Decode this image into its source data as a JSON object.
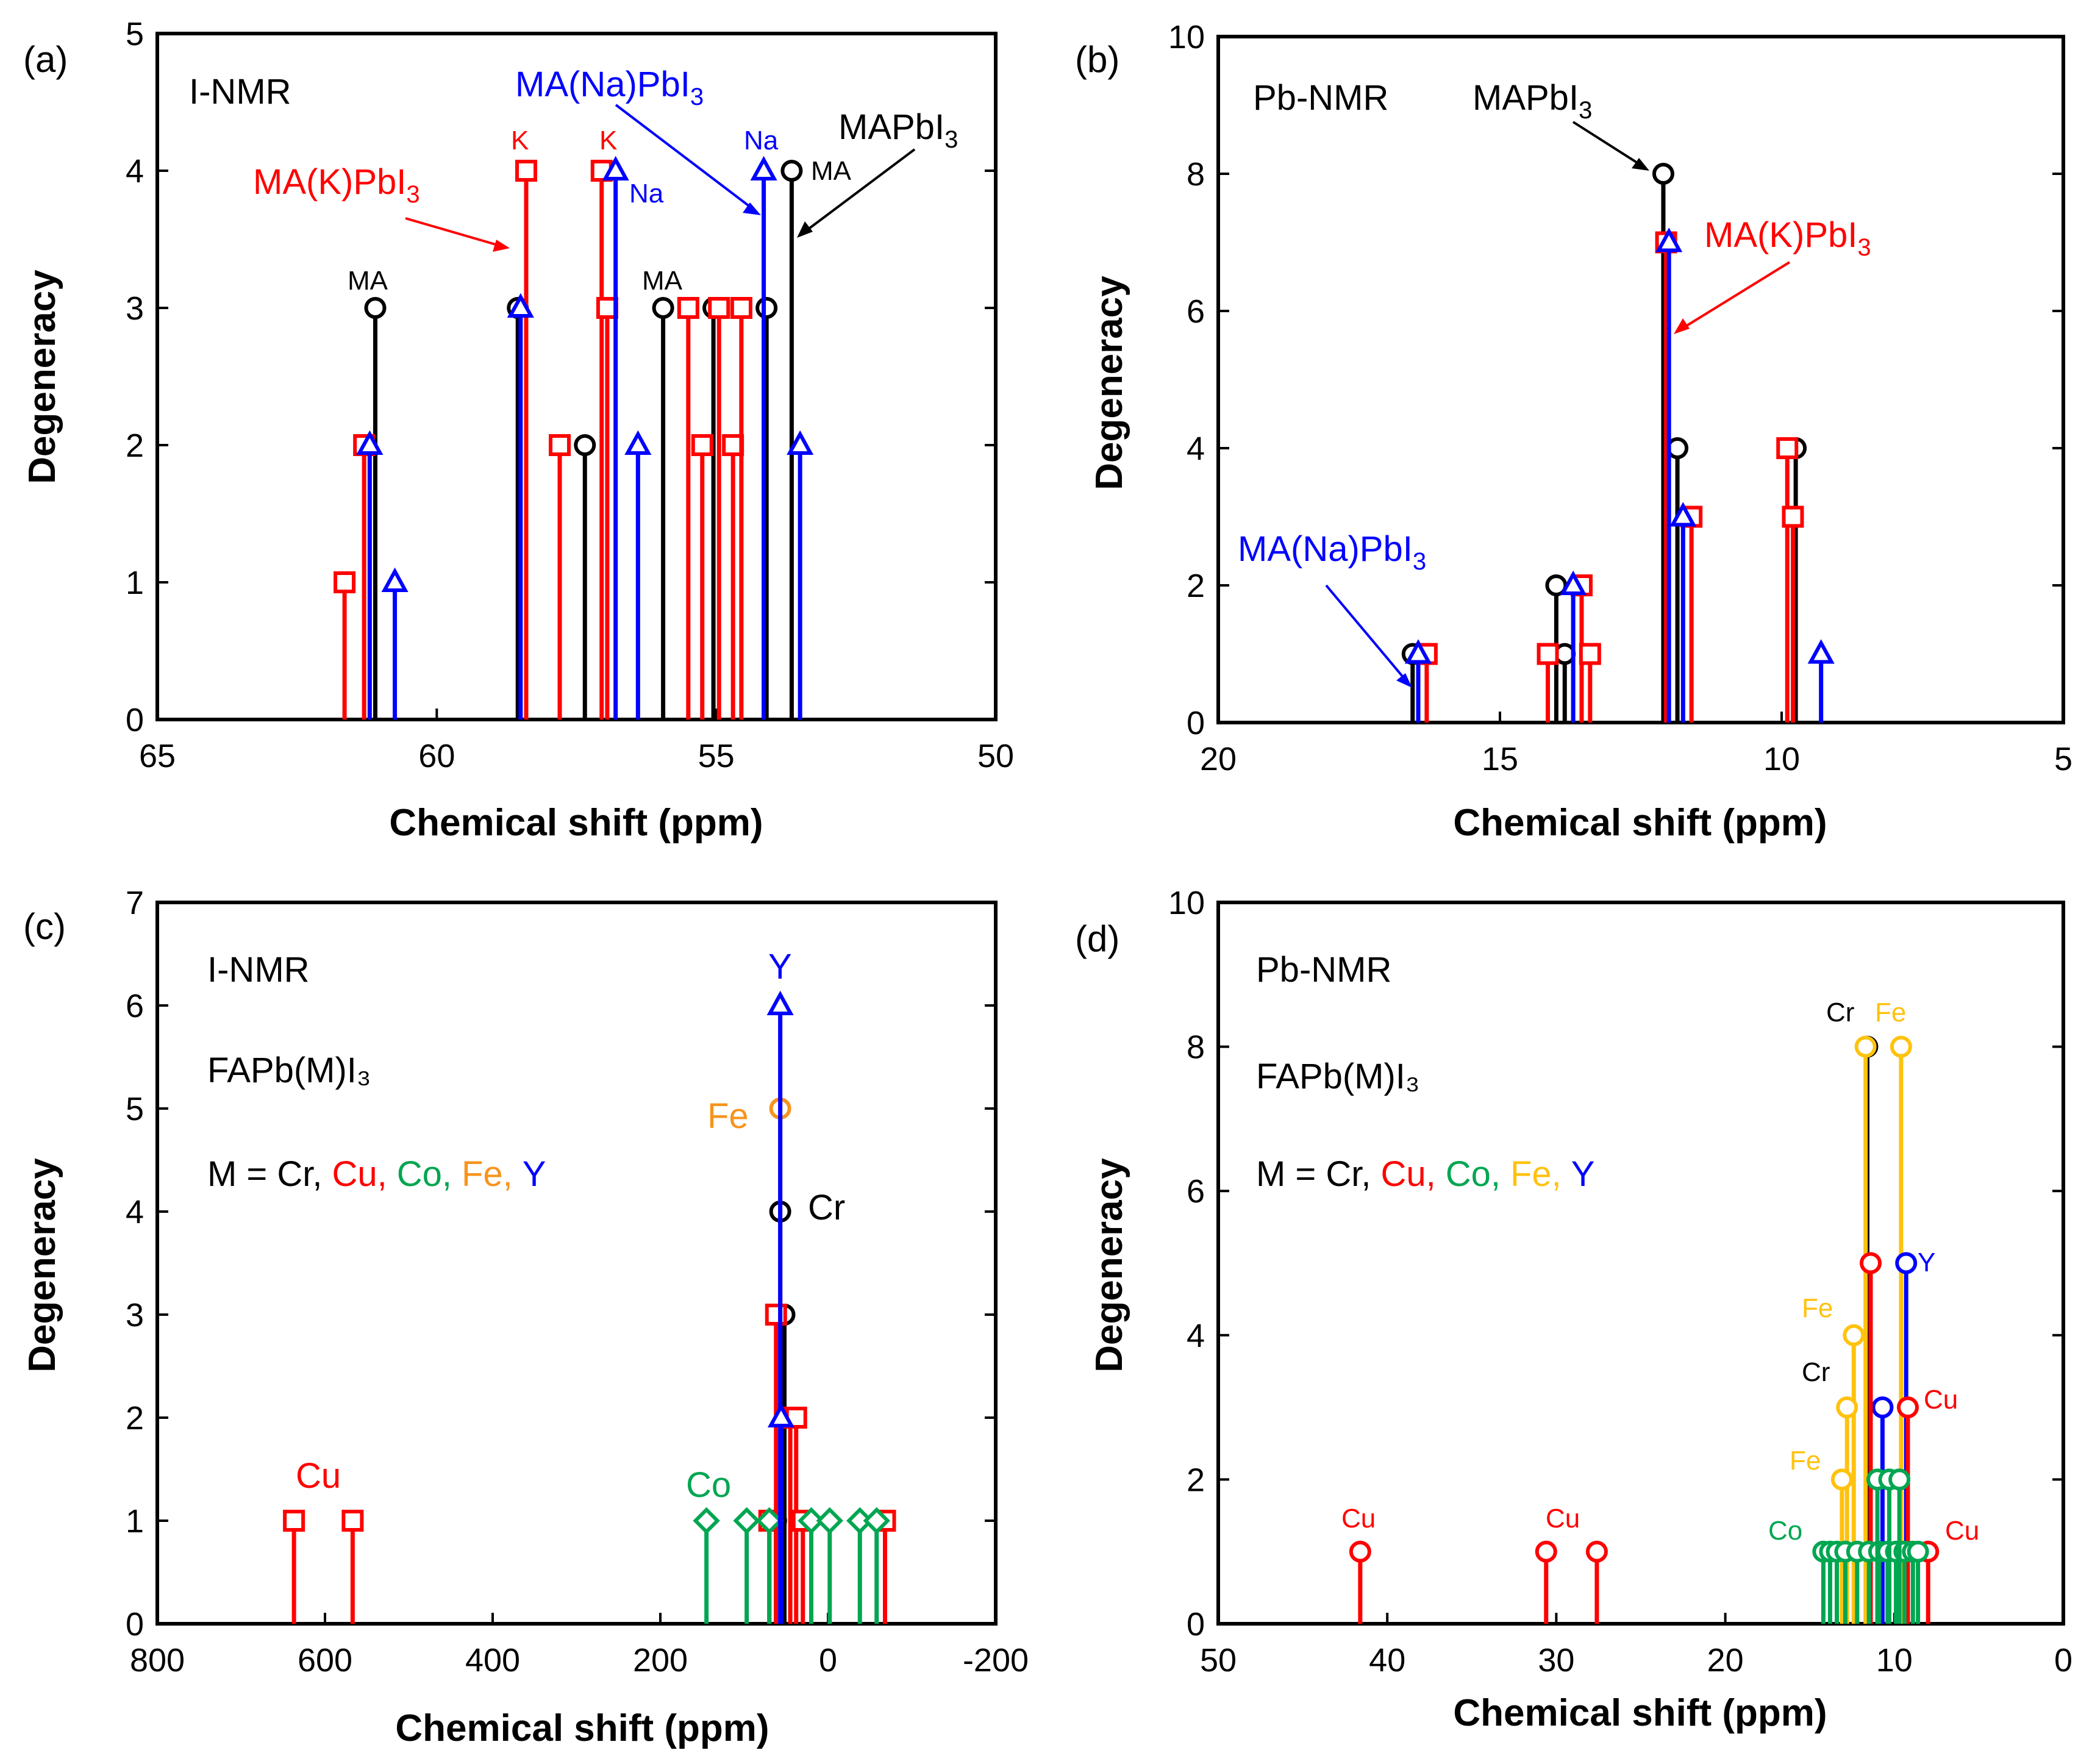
{
  "figure": {
    "panels": [
      {
        "letter": "(a)",
        "title": "I-NMR"
      },
      {
        "letter": "(b)",
        "title": "Pb-NMR"
      },
      {
        "letter": "(c)",
        "title": "I-NMR",
        "compound": "FAPb(M)I₃",
        "m_label": "M =",
        "metals": [
          "Cr,",
          "Cu,",
          "Co,",
          "Fe,",
          "Y"
        ]
      },
      {
        "letter": "(d)",
        "title": "Pb-NMR",
        "compound": "FAPb(M)I₃",
        "m_label": "M =",
        "metals": [
          "Cr,",
          "Cu,",
          "Co,",
          "Fe,",
          "Y"
        ]
      }
    ],
    "colors": {
      "black": "#000000",
      "red": "#ff0000",
      "blue": "#0000ff",
      "green": "#00a651",
      "orange": "#f7941d",
      "gold": "#ffc20e"
    }
  },
  "chart_data": [
    {
      "panel": "(a)",
      "type": "stem",
      "title": "I-NMR",
      "xlabel": "Chemical shift (ppm)",
      "ylabel": "Degeneracy",
      "xlim": [
        65,
        50
      ],
      "ylim": [
        0,
        5
      ],
      "xticks": [
        65,
        60,
        55,
        50
      ],
      "yticks": [
        0,
        1,
        2,
        3,
        4,
        5
      ],
      "series": [
        {
          "name": "MAPbI3",
          "color": "black",
          "marker": "circle",
          "x": [
            61.1,
            58.55,
            57.35,
            55.95,
            55.05,
            54.1,
            53.65
          ],
          "y": [
            3,
            3,
            2,
            3,
            3,
            3,
            4
          ]
        },
        {
          "name": "MA(K)PbI3",
          "color": "red",
          "marker": "square",
          "x": [
            61.65,
            61.3,
            58.4,
            57.8,
            57.05,
            56.95,
            55.5,
            55.25,
            54.95,
            54.7,
            54.55
          ],
          "y": [
            1,
            2,
            4,
            2,
            4,
            3,
            3,
            2,
            3,
            2,
            3
          ]
        },
        {
          "name": "MA(Na)PbI3",
          "color": "blue",
          "marker": "triangle",
          "x": [
            61.2,
            60.75,
            58.5,
            56.8,
            56.4,
            54.15,
            53.5
          ],
          "y": [
            2,
            1,
            3,
            4,
            2,
            4,
            2
          ]
        }
      ],
      "annotations": [
        {
          "text": "MA",
          "color": "black"
        },
        {
          "text": "MA",
          "color": "black"
        },
        {
          "text": "MA",
          "color": "black"
        },
        {
          "text": "K",
          "color": "red"
        },
        {
          "text": "K",
          "color": "red"
        },
        {
          "text": "Na",
          "color": "blue"
        },
        {
          "text": "Na",
          "color": "blue"
        }
      ],
      "series_labels": {
        "black": "MAPbI",
        "red": "MA(K)PbI",
        "blue": "MA(Na)PbI",
        "subscript": "3"
      }
    },
    {
      "panel": "(b)",
      "type": "stem",
      "title": "Pb-NMR",
      "xlabel": "Chemical shift (ppm)",
      "ylabel": "Degeneracy",
      "xlim": [
        20,
        5
      ],
      "ylim": [
        0,
        10
      ],
      "xticks": [
        20,
        15,
        10,
        5
      ],
      "yticks": [
        0,
        2,
        4,
        6,
        8,
        10
      ],
      "series": [
        {
          "name": "MAPbI3",
          "color": "black",
          "marker": "circle",
          "x": [
            16.55,
            14.0,
            13.85,
            12.1,
            11.85,
            9.75
          ],
          "y": [
            1,
            2,
            1,
            8,
            4,
            4
          ]
        },
        {
          "name": "MA(K)PbI3",
          "color": "red",
          "marker": "square",
          "x": [
            16.3,
            14.15,
            13.55,
            13.4,
            12.05,
            11.6,
            9.9,
            9.8
          ],
          "y": [
            1,
            1,
            2,
            1,
            7,
            3,
            4,
            3
          ]
        },
        {
          "name": "MA(Na)PbI3",
          "color": "blue",
          "marker": "triangle",
          "x": [
            16.45,
            13.7,
            12.0,
            11.75,
            9.3
          ],
          "y": [
            1,
            2,
            7,
            3,
            1
          ]
        }
      ],
      "series_labels": {
        "black": "MAPbI",
        "red": "MA(K)PbI",
        "blue": "MA(Na)PbI",
        "subscript": "3"
      }
    },
    {
      "panel": "(c)",
      "type": "stem",
      "title": "I-NMR",
      "xlabel": "Chemical shift (ppm)",
      "ylabel": "Degeneracy",
      "xlim": [
        800,
        -200
      ],
      "ylim": [
        0,
        7
      ],
      "xticks": [
        800,
        600,
        400,
        200,
        0,
        -200
      ],
      "yticks": [
        0,
        1,
        2,
        3,
        4,
        5,
        6,
        7
      ],
      "series": [
        {
          "name": "Cr",
          "color": "black",
          "marker": "circle",
          "x": [
            57,
            52,
            62
          ],
          "y": [
            4,
            3,
            1
          ]
        },
        {
          "name": "Cu",
          "color": "red",
          "marker": "square",
          "x": [
            637,
            567,
            70,
            62,
            45,
            38,
            30,
            -68
          ],
          "y": [
            1,
            1,
            1,
            3,
            2,
            2,
            1,
            1
          ]
        },
        {
          "name": "Co",
          "color": "green",
          "marker": "diamond",
          "x": [
            145,
            97,
            70,
            20,
            -2,
            -38,
            -58
          ],
          "y": [
            1,
            1,
            1,
            1,
            1,
            1,
            1
          ]
        },
        {
          "name": "Fe",
          "color": "orange",
          "marker": "circle",
          "x": [
            57
          ],
          "y": [
            5
          ]
        },
        {
          "name": "Y",
          "color": "blue",
          "marker": "triangle",
          "x": [
            57,
            56
          ],
          "y": [
            6,
            2
          ]
        }
      ],
      "annotations": [
        {
          "text": "Cu",
          "color": "red"
        },
        {
          "text": "Co",
          "color": "green"
        },
        {
          "text": "Fe",
          "color": "orange"
        },
        {
          "text": "Cr",
          "color": "black"
        },
        {
          "text": "Y",
          "color": "blue"
        }
      ]
    },
    {
      "panel": "(d)",
      "type": "stem",
      "title": "Pb-NMR",
      "xlabel": "Chemical shift (ppm)",
      "ylabel": "Degeneracy",
      "xlim": [
        50,
        0
      ],
      "ylim": [
        0,
        10
      ],
      "xticks": [
        50,
        40,
        30,
        20,
        10,
        0
      ],
      "yticks": [
        0,
        2,
        4,
        6,
        8,
        10
      ],
      "series": [
        {
          "name": "Cr",
          "color": "black",
          "marker": "circle",
          "x": [
            11.6
          ],
          "y": [
            8
          ]
        },
        {
          "name": "Fe",
          "color": "gold",
          "marker": "circle",
          "x": [
            11.7,
            9.6,
            12.4,
            12.8,
            13.1
          ],
          "y": [
            8,
            8,
            4,
            3,
            2
          ]
        },
        {
          "name": "Y",
          "color": "blue",
          "marker": "circle",
          "x": [
            9.3,
            10.7
          ],
          "y": [
            5,
            3
          ]
        },
        {
          "name": "Cu",
          "color": "red",
          "marker": "circle",
          "x": [
            41.6,
            30.6,
            27.6,
            11.4,
            9.2,
            8.0
          ],
          "y": [
            1,
            1,
            1,
            5,
            3,
            1
          ]
        },
        {
          "name": "Co",
          "color": "green",
          "marker": "circle",
          "x": [
            14.2,
            13.8,
            13.4,
            12.9,
            12.2,
            11.5,
            10.9,
            10.4,
            9.9,
            9.4,
            8.9,
            8.6,
            11.0,
            10.3,
            9.7
          ],
          "y": [
            1,
            1,
            1,
            1,
            1,
            1,
            1,
            1,
            1,
            1,
            1,
            1,
            2,
            2,
            2
          ]
        }
      ],
      "annotations": [
        {
          "text": "Cu",
          "color": "red"
        },
        {
          "text": "Cu",
          "color": "red"
        },
        {
          "text": "Cu",
          "color": "red"
        },
        {
          "text": "Cu",
          "color": "red"
        },
        {
          "text": "Co",
          "color": "green"
        },
        {
          "text": "Fe",
          "color": "gold"
        },
        {
          "text": "Fe",
          "color": "gold"
        },
        {
          "text": "Fe",
          "color": "gold"
        },
        {
          "text": "Cr",
          "color": "black"
        },
        {
          "text": "Cr",
          "color": "black"
        },
        {
          "text": "Y",
          "color": "blue"
        }
      ]
    }
  ]
}
